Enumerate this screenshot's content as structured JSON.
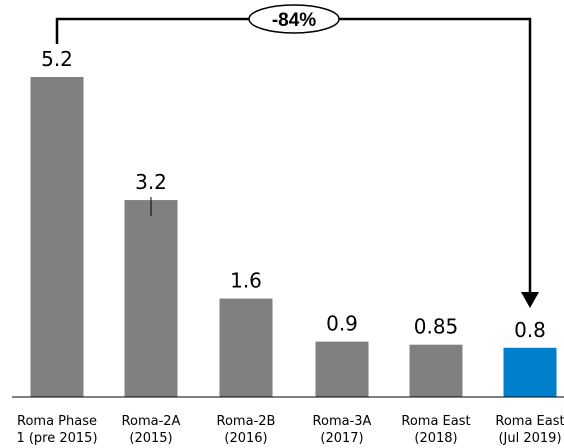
{
  "chart_data": {
    "type": "bar",
    "categories": [
      [
        "Roma Phase",
        "1 (pre 2015)"
      ],
      [
        "Roma-2A",
        "(2015)"
      ],
      [
        "Roma-2B",
        "(2016)"
      ],
      [
        "Roma-3A",
        "(2017)"
      ],
      [
        "Roma East",
        "(2018)"
      ],
      [
        "Roma East",
        "(Jul 2019)"
      ]
    ],
    "values": [
      5.2,
      3.2,
      1.6,
      0.9,
      0.85,
      0.8
    ],
    "value_labels": [
      "5.2",
      "3.2",
      "1.6",
      "0.9",
      "0.85",
      "0.8"
    ],
    "colors": [
      "#808080",
      "#808080",
      "#808080",
      "#808080",
      "#808080",
      "#0080cc"
    ],
    "title": "",
    "xlabel": "",
    "ylabel": "",
    "ylim": [
      0,
      5.2
    ],
    "grid": false,
    "legend": "none",
    "annotation": {
      "text": "-84%",
      "from_category": 0,
      "to_category": 5
    }
  }
}
